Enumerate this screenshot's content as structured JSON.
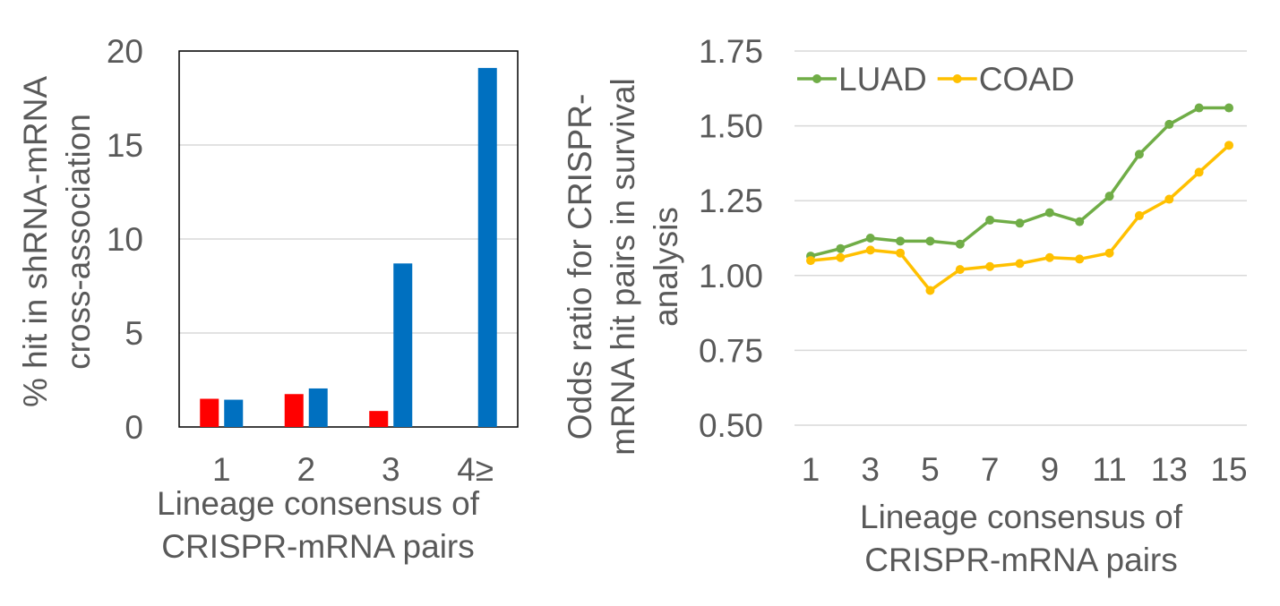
{
  "chart_data": [
    {
      "type": "bar",
      "xlabel": "Lineage consensus of\nCRISPR-mRNA pairs",
      "ylabel": "% hit in shRNA-mRNA\ncross-association",
      "ylim": [
        0,
        20
      ],
      "yticks": [
        "0",
        "5",
        "10",
        "15",
        "20"
      ],
      "categories": [
        "1",
        "2",
        "3",
        "4≥"
      ],
      "series": [
        {
          "values": [
            1.5,
            1.75,
            0.85,
            null
          ],
          "color": "#ff0000"
        },
        {
          "values": [
            1.45,
            2.05,
            8.7,
            19.1
          ],
          "color": "#0070c0"
        }
      ],
      "grid": true
    },
    {
      "type": "line",
      "xlabel": "Lineage consensus of\nCRISPR-mRNA pairs",
      "ylabel": "Odds ratio for CRISPR-\nmRNA hit pairs in survival\nanalysis",
      "ylim": [
        0.5,
        1.75
      ],
      "yticks": [
        "0.50",
        "0.75",
        "1.00",
        "1.25",
        "1.50",
        "1.75"
      ],
      "x": [
        1,
        2,
        3,
        4,
        5,
        6,
        7,
        8,
        9,
        10,
        11,
        12,
        13,
        14,
        15
      ],
      "xticks": [
        "1",
        "3",
        "5",
        "7",
        "9",
        "11",
        "13",
        "15"
      ],
      "series": [
        {
          "name": "LUAD",
          "color": "#70ad47",
          "values": [
            1.065,
            1.09,
            1.125,
            1.115,
            1.115,
            1.105,
            1.185,
            1.175,
            1.21,
            1.18,
            1.265,
            1.405,
            1.505,
            1.56,
            1.56
          ]
        },
        {
          "name": "COAD",
          "color": "#ffc000",
          "values": [
            1.05,
            1.06,
            1.085,
            1.075,
            0.95,
            1.02,
            1.03,
            1.04,
            1.06,
            1.055,
            1.075,
            1.2,
            1.255,
            1.345,
            1.435
          ]
        }
      ],
      "legend": "top-left",
      "grid": true
    }
  ]
}
